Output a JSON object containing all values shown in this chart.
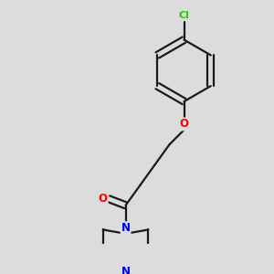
{
  "bg_color": "#dcdcdc",
  "bond_color": "#1a1a1a",
  "bond_width": 1.6,
  "atom_colors": {
    "O": "#ff0000",
    "N": "#0000ee",
    "Cl": "#22cc00"
  },
  "font_size": 8.5,
  "font_size_cl": 8.0,
  "dbo": 0.014
}
